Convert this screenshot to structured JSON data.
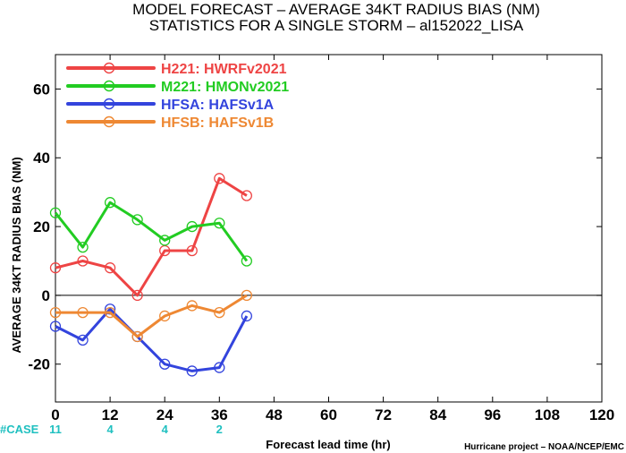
{
  "chart_data": {
    "type": "line",
    "title": "MODEL FORECAST – AVERAGE 34KT RADIUS BIAS (NM)",
    "subtitle": "STATISTICS FOR A SINGLE STORM – al152022_LISA",
    "xlabel": "Forecast lead time (hr)",
    "ylabel": "AVERAGE 34KT RADIUS BIAS (NM)",
    "xlim": [
      0,
      120
    ],
    "ylim": [
      -31,
      70
    ],
    "x_ticks": [
      0,
      12,
      24,
      36,
      48,
      60,
      72,
      84,
      96,
      108,
      120
    ],
    "y_ticks": [
      -20,
      0,
      20,
      40,
      60
    ],
    "zero_line": true,
    "legend_position": "top-left",
    "series": [
      {
        "name": "H221: HWRFv2021",
        "color": "#ee4444",
        "x": [
          0,
          6,
          12,
          18,
          24,
          30,
          36,
          42
        ],
        "y": [
          8,
          10,
          8,
          0,
          13,
          13,
          34,
          29
        ]
      },
      {
        "name": "M221: HMONv2021",
        "color": "#22cc22",
        "x": [
          0,
          6,
          12,
          18,
          24,
          30,
          36,
          42
        ],
        "y": [
          24,
          14,
          27,
          22,
          16,
          20,
          21,
          10
        ]
      },
      {
        "name": "HFSA: HAFSv1A",
        "color": "#3344dd",
        "x": [
          0,
          6,
          12,
          18,
          24,
          30,
          36,
          42
        ],
        "y": [
          -9,
          -13,
          -4,
          -12,
          -20,
          -22,
          -21,
          -6
        ]
      },
      {
        "name": "HFSB: HAFSv1B",
        "color": "#ee8833",
        "x": [
          0,
          6,
          12,
          18,
          24,
          30,
          36,
          42
        ],
        "y": [
          -5,
          -5,
          -5,
          -12,
          -6,
          -3,
          -5,
          0
        ]
      }
    ],
    "cases": {
      "label": "#CASE",
      "color": "#20c0c0",
      "values": [
        {
          "x": 0,
          "count": "11"
        },
        {
          "x": 12,
          "count": "4"
        },
        {
          "x": 24,
          "count": "4"
        },
        {
          "x": 36,
          "count": "2"
        }
      ]
    },
    "credit": "Hurricane project – NOAA/NCEP/EMC"
  }
}
